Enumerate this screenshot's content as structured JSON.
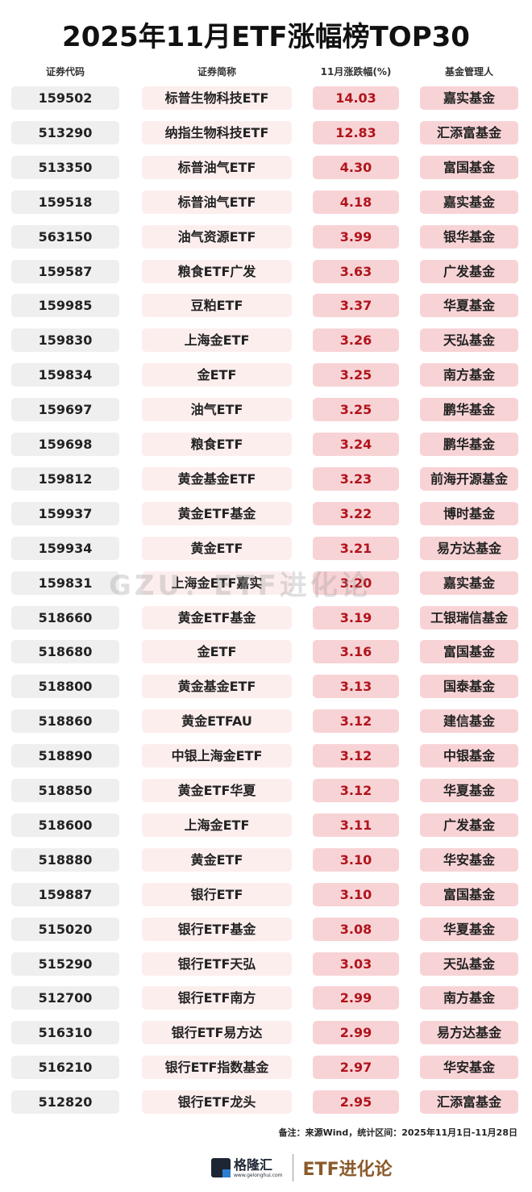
{
  "title": "2025年11月ETF涨幅榜TOP30",
  "headers": [
    "证券代码",
    "证券简称",
    "11月涨跌幅(%)",
    "基金管理人"
  ],
  "rows": [
    [
      "159502",
      "标普生物科技ETF",
      "14.03",
      "嘉实基金"
    ],
    [
      "513290",
      "纳指生物科技ETF",
      "12.83",
      "汇添富基金"
    ],
    [
      "513350",
      "标普油气ETF",
      "4.30",
      "富国基金"
    ],
    [
      "159518",
      "标普油气ETF",
      "4.18",
      "嘉实基金"
    ],
    [
      "563150",
      "油气资源ETF",
      "3.99",
      "银华基金"
    ],
    [
      "159587",
      "粮食ETF广发",
      "3.63",
      "广发基金"
    ],
    [
      "159985",
      "豆粕ETF",
      "3.37",
      "华夏基金"
    ],
    [
      "159830",
      "上海金ETF",
      "3.26",
      "天弘基金"
    ],
    [
      "159834",
      "金ETF",
      "3.25",
      "南方基金"
    ],
    [
      "159697",
      "油气ETF",
      "3.25",
      "鹏华基金"
    ],
    [
      "159698",
      "粮食ETF",
      "3.24",
      "鹏华基金"
    ],
    [
      "159812",
      "黄金基金ETF",
      "3.23",
      "前海开源基金"
    ],
    [
      "159937",
      "黄金ETF基金",
      "3.22",
      "博时基金"
    ],
    [
      "159934",
      "黄金ETF",
      "3.21",
      "易方达基金"
    ],
    [
      "159831",
      "上海金ETF嘉实",
      "3.20",
      "嘉实基金"
    ],
    [
      "518660",
      "黄金ETF基金",
      "3.19",
      "工银瑞信基金"
    ],
    [
      "518680",
      "金ETF",
      "3.16",
      "富国基金"
    ],
    [
      "518800",
      "黄金基金ETF",
      "3.13",
      "国泰基金"
    ],
    [
      "518860",
      "黄金ETFAU",
      "3.12",
      "建信基金"
    ],
    [
      "518890",
      "中银上海金ETF",
      "3.12",
      "中银基金"
    ],
    [
      "518850",
      "黄金ETF华夏",
      "3.12",
      "华夏基金"
    ],
    [
      "518600",
      "上海金ETF",
      "3.11",
      "广发基金"
    ],
    [
      "518880",
      "黄金ETF",
      "3.10",
      "华安基金"
    ],
    [
      "159887",
      "银行ETF",
      "3.10",
      "富国基金"
    ],
    [
      "515020",
      "银行ETF基金",
      "3.08",
      "华夏基金"
    ],
    [
      "515290",
      "银行ETF天弘",
      "3.03",
      "天弘基金"
    ],
    [
      "512700",
      "银行ETF南方",
      "2.99",
      "南方基金"
    ],
    [
      "516310",
      "银行ETF易方达",
      "2.99",
      "易方达基金"
    ],
    [
      "516210",
      "银行ETF指数基金",
      "2.97",
      "华安基金"
    ],
    [
      "512820",
      "银行ETF龙头",
      "2.95",
      "汇添富基金"
    ]
  ],
  "note": "备注：来源Wind，统计区间：2025年11月1日-11月28日",
  "watermark": "GZU：ETF进化论",
  "footer": {
    "brand": "格隆汇",
    "brand_url": "www.gelonghui.com",
    "column": "ETF进化论"
  },
  "colors": {
    "accent_red": "#b0141c",
    "pink": "#f8d3d6",
    "light_pink": "#fdeeee",
    "gray": "#efefef",
    "brown": "#8b5a2b"
  }
}
